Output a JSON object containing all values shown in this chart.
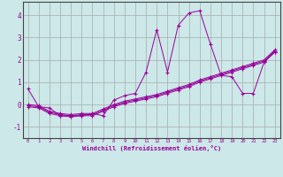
{
  "xlabel": "Windchill (Refroidissement éolien,°C)",
  "background_color": "#cce8e8",
  "grid_color": "#aaaaaa",
  "line_color": "#990099",
  "xlim": [
    -0.5,
    23.5
  ],
  "ylim": [
    -1.5,
    4.6
  ],
  "xticks": [
    0,
    1,
    2,
    3,
    4,
    5,
    6,
    7,
    8,
    9,
    10,
    11,
    12,
    13,
    14,
    15,
    16,
    17,
    18,
    19,
    20,
    21,
    22,
    23
  ],
  "yticks": [
    -1,
    0,
    1,
    2,
    3,
    4
  ],
  "series": [
    {
      "x": [
        0,
        1,
        2,
        3,
        4,
        5,
        6,
        7,
        8,
        9,
        10,
        11,
        12,
        13,
        14,
        15,
        16,
        17,
        18,
        19,
        20,
        21,
        22,
        23
      ],
      "y": [
        0.7,
        -0.1,
        -0.15,
        -0.5,
        -0.5,
        -0.5,
        -0.4,
        -0.5,
        0.2,
        0.4,
        0.5,
        1.45,
        3.35,
        1.45,
        3.55,
        4.1,
        4.2,
        2.7,
        1.3,
        1.25,
        0.5,
        0.5,
        1.9,
        2.35
      ]
    },
    {
      "x": [
        0,
        1,
        2,
        3,
        4,
        5,
        6,
        7,
        8,
        9,
        10,
        11,
        12,
        13,
        14,
        15,
        16,
        17,
        18,
        19,
        20,
        21,
        22,
        23
      ],
      "y": [
        -0.1,
        -0.15,
        -0.4,
        -0.5,
        -0.55,
        -0.5,
        -0.5,
        -0.3,
        -0.1,
        0.05,
        0.15,
        0.25,
        0.35,
        0.5,
        0.65,
        0.8,
        1.0,
        1.15,
        1.3,
        1.45,
        1.6,
        1.75,
        1.9,
        2.35
      ]
    },
    {
      "x": [
        0,
        1,
        2,
        3,
        4,
        5,
        6,
        7,
        8,
        9,
        10,
        11,
        12,
        13,
        14,
        15,
        16,
        17,
        18,
        19,
        20,
        21,
        22,
        23
      ],
      "y": [
        -0.05,
        -0.1,
        -0.35,
        -0.45,
        -0.5,
        -0.45,
        -0.45,
        -0.25,
        -0.05,
        0.1,
        0.2,
        0.3,
        0.4,
        0.55,
        0.7,
        0.85,
        1.05,
        1.2,
        1.35,
        1.5,
        1.65,
        1.8,
        1.95,
        2.4
      ]
    },
    {
      "x": [
        0,
        1,
        2,
        3,
        4,
        5,
        6,
        7,
        8,
        9,
        10,
        11,
        12,
        13,
        14,
        15,
        16,
        17,
        18,
        19,
        20,
        21,
        22,
        23
      ],
      "y": [
        0.0,
        -0.05,
        -0.3,
        -0.4,
        -0.45,
        -0.4,
        -0.4,
        -0.2,
        0.0,
        0.15,
        0.25,
        0.35,
        0.45,
        0.6,
        0.75,
        0.9,
        1.1,
        1.25,
        1.4,
        1.55,
        1.7,
        1.85,
        2.0,
        2.45
      ]
    }
  ]
}
